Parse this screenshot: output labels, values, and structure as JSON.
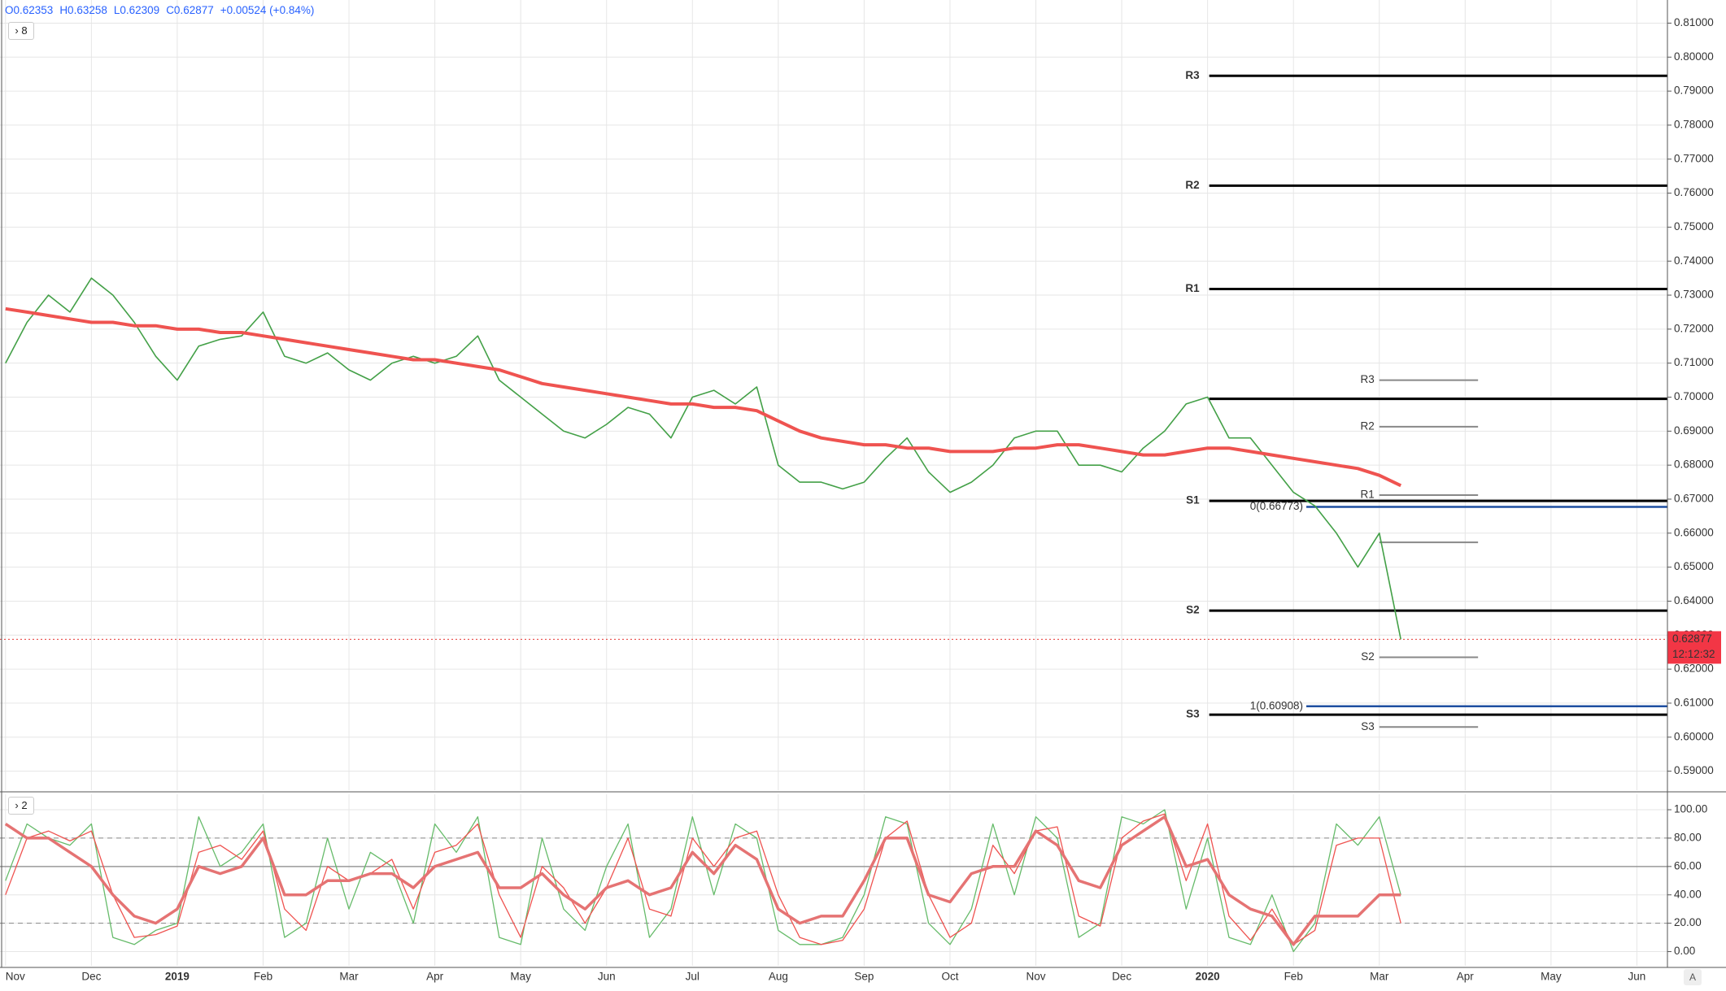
{
  "header": {
    "open": "O0.62353",
    "high": "H0.63258",
    "low": "L0.62309",
    "close": "C0.62877",
    "change": "+0.00524 (+0.84%)"
  },
  "pane_badges": [
    "8",
    "2"
  ],
  "scale_button": "A",
  "chart_data": [
    {
      "type": "line",
      "categories": [
        "Nov",
        null,
        null,
        null,
        "Dec",
        null,
        null,
        null,
        "2019",
        null,
        null,
        null,
        "Feb",
        null,
        null,
        null,
        "Mar",
        null,
        null,
        null,
        "Apr",
        null,
        null,
        null,
        "May",
        null,
        null,
        null,
        "Jun",
        null,
        null,
        null,
        "Jul",
        null,
        null,
        null,
        "Aug",
        null,
        null,
        null,
        "Sep",
        null,
        null,
        null,
        "Oct",
        null,
        null,
        null,
        "Nov",
        null,
        null,
        null,
        "Dec",
        null,
        null,
        null,
        "2020",
        null,
        null,
        null,
        "Feb",
        null,
        null,
        null,
        "Mar",
        null,
        null,
        null,
        "Apr",
        null,
        null,
        null,
        "May",
        null,
        null,
        null,
        "Jun",
        null,
        null,
        null
      ],
      "series": [
        {
          "color": "#43a047",
          "width": 1.6,
          "values": [
            0.71,
            0.722,
            0.73,
            0.725,
            0.735,
            0.73,
            0.722,
            0.712,
            0.705,
            0.715,
            0.717,
            0.718,
            0.725,
            0.712,
            0.71,
            0.713,
            0.708,
            0.705,
            0.71,
            0.712,
            0.71,
            0.712,
            0.718,
            0.705,
            0.7,
            0.695,
            0.69,
            0.688,
            0.692,
            0.697,
            0.695,
            0.688,
            0.7,
            0.702,
            0.698,
            0.703,
            0.68,
            0.675,
            0.675,
            0.673,
            0.675,
            0.682,
            0.688,
            0.678,
            0.672,
            0.675,
            0.68,
            0.688,
            0.69,
            0.69,
            0.68,
            0.68,
            0.678,
            0.685,
            0.69,
            0.698,
            0.7,
            0.688,
            0.688,
            0.68,
            0.672,
            0.668,
            0.66,
            0.65,
            0.66,
            0.62877,
            null,
            null,
            null,
            null,
            null,
            null,
            null,
            null,
            null,
            null,
            null,
            null,
            null,
            null
          ]
        },
        {
          "color": "#ef5350",
          "width": 4,
          "values": [
            0.726,
            0.725,
            0.724,
            0.723,
            0.722,
            0.722,
            0.721,
            0.721,
            0.72,
            0.72,
            0.719,
            0.719,
            0.718,
            0.717,
            0.716,
            0.715,
            0.714,
            0.713,
            0.712,
            0.711,
            0.711,
            0.71,
            0.709,
            0.708,
            0.706,
            0.704,
            0.703,
            0.702,
            0.701,
            0.7,
            0.699,
            0.698,
            0.698,
            0.697,
            0.697,
            0.696,
            0.693,
            0.69,
            0.688,
            0.687,
            0.686,
            0.686,
            0.685,
            0.685,
            0.684,
            0.684,
            0.684,
            0.685,
            0.685,
            0.686,
            0.686,
            0.685,
            0.684,
            0.683,
            0.683,
            0.684,
            0.685,
            0.685,
            0.684,
            0.683,
            0.682,
            0.681,
            0.68,
            0.679,
            0.677,
            0.674,
            null,
            null,
            null,
            null,
            null,
            null,
            null,
            null,
            null,
            null,
            null,
            null,
            null,
            null
          ]
        }
      ],
      "ylim": [
        0.5844,
        0.8168
      ],
      "yticks": [
        {
          "value": 0.59,
          "label": "0.59000"
        },
        {
          "value": 0.6,
          "label": "0.60000"
        },
        {
          "value": 0.61,
          "label": "0.61000"
        },
        {
          "value": 0.62,
          "label": "0.62000"
        },
        {
          "value": 0.63,
          "label": "0.63000"
        },
        {
          "value": 0.64,
          "label": "0.64000"
        },
        {
          "value": 0.65,
          "label": "0.65000"
        },
        {
          "value": 0.66,
          "label": "0.66000"
        },
        {
          "value": 0.67,
          "label": "0.67000"
        },
        {
          "value": 0.68,
          "label": "0.68000"
        },
        {
          "value": 0.69,
          "label": "0.69000"
        },
        {
          "value": 0.7,
          "label": "0.70000"
        },
        {
          "value": 0.71,
          "label": "0.71000"
        },
        {
          "value": 0.72,
          "label": "0.72000"
        },
        {
          "value": 0.73,
          "label": "0.73000"
        },
        {
          "value": 0.74,
          "label": "0.74000"
        },
        {
          "value": 0.75,
          "label": "0.75000"
        },
        {
          "value": 0.76,
          "label": "0.76000"
        },
        {
          "value": 0.77,
          "label": "0.77000"
        },
        {
          "value": 0.78,
          "label": "0.78000"
        },
        {
          "value": 0.79,
          "label": "0.79000"
        },
        {
          "value": 0.8,
          "label": "0.80000"
        },
        {
          "value": 0.81,
          "label": "0.81000"
        }
      ],
      "grid": true,
      "pivots": [
        {
          "value": 0.7945,
          "label": "R3"
        },
        {
          "value": 0.7622,
          "label": "R2"
        },
        {
          "value": 0.7318,
          "label": "R1"
        },
        {
          "value": 0.6995,
          "label": null
        },
        {
          "value": 0.6695,
          "label": "S1"
        },
        {
          "value": 0.6372,
          "label": "S2"
        },
        {
          "value": 0.6066,
          "label": "S3"
        }
      ],
      "pivots_2": [
        {
          "value": 0.705,
          "label": "R3"
        },
        {
          "value": 0.6913,
          "label": "R2"
        },
        {
          "value": 0.6712,
          "label": "R1"
        },
        {
          "value": 0.6573,
          "label": null
        },
        {
          "value": 0.6235,
          "label": "S2"
        },
        {
          "value": 0.603,
          "label": "S3"
        }
      ],
      "fib_levels": [
        {
          "value": 0.66773,
          "label": "0(0.66773)"
        },
        {
          "value": 0.60908,
          "label": "1(0.60908)"
        }
      ],
      "last_price": {
        "value": 0.62877,
        "label": "0.62877"
      },
      "countdown": "12:12:32"
    },
    {
      "type": "line",
      "series": [
        {
          "color": "#66bb6a",
          "width": 1.3,
          "values": [
            50,
            90,
            80,
            75,
            90,
            10,
            5,
            15,
            20,
            95,
            60,
            70,
            90,
            10,
            20,
            80,
            30,
            70,
            60,
            20,
            90,
            70,
            95,
            10,
            5,
            80,
            30,
            15,
            60,
            90,
            10,
            30,
            95,
            40,
            90,
            80,
            15,
            5,
            5,
            10,
            40,
            95,
            90,
            20,
            5,
            30,
            90,
            40,
            95,
            80,
            10,
            20,
            95,
            90,
            100,
            30,
            80,
            10,
            5,
            40,
            0,
            20,
            90,
            75,
            95,
            40,
            null,
            null,
            null,
            null,
            null,
            null,
            null,
            null,
            null,
            null,
            null,
            null,
            null,
            null
          ]
        },
        {
          "color": "#ef5350",
          "width": 1.3,
          "values": [
            40,
            80,
            85,
            78,
            85,
            40,
            10,
            12,
            18,
            70,
            75,
            65,
            85,
            30,
            15,
            60,
            50,
            55,
            65,
            30,
            70,
            75,
            90,
            40,
            10,
            60,
            45,
            20,
            45,
            80,
            30,
            25,
            80,
            60,
            80,
            85,
            40,
            10,
            5,
            8,
            30,
            80,
            92,
            40,
            10,
            20,
            75,
            55,
            85,
            88,
            25,
            18,
            80,
            92,
            97,
            50,
            90,
            25,
            8,
            30,
            5,
            15,
            75,
            80,
            80,
            20,
            null,
            null,
            null,
            null,
            null,
            null,
            null,
            null,
            null,
            null,
            null,
            null,
            null,
            null
          ]
        },
        {
          "color": "#e57373",
          "width": 3.5,
          "values": [
            90,
            80,
            80,
            70,
            60,
            40,
            25,
            20,
            30,
            60,
            55,
            60,
            80,
            40,
            40,
            50,
            50,
            55,
            55,
            45,
            60,
            65,
            70,
            45,
            45,
            55,
            40,
            30,
            45,
            50,
            40,
            45,
            70,
            55,
            75,
            65,
            30,
            20,
            25,
            25,
            50,
            80,
            80,
            40,
            35,
            55,
            60,
            60,
            85,
            75,
            50,
            45,
            75,
            85,
            95,
            60,
            65,
            40,
            30,
            25,
            5,
            25,
            25,
            25,
            40,
            40,
            null,
            null,
            null,
            null,
            null,
            null,
            null,
            null,
            null,
            null,
            null,
            null,
            null,
            null
          ]
        }
      ],
      "ylim": [
        -10,
        110.9
      ],
      "yticks": [
        {
          "value": 0,
          "label": "0.00"
        },
        {
          "value": 20,
          "label": "20.00"
        },
        {
          "value": 40,
          "label": "40.00"
        },
        {
          "value": 60,
          "label": "60.00"
        },
        {
          "value": 80,
          "label": "80.00"
        },
        {
          "value": 100,
          "label": "100.00"
        }
      ],
      "grid": true,
      "dashed_levels": [
        80,
        20
      ],
      "solid_levels": [
        60
      ]
    }
  ]
}
